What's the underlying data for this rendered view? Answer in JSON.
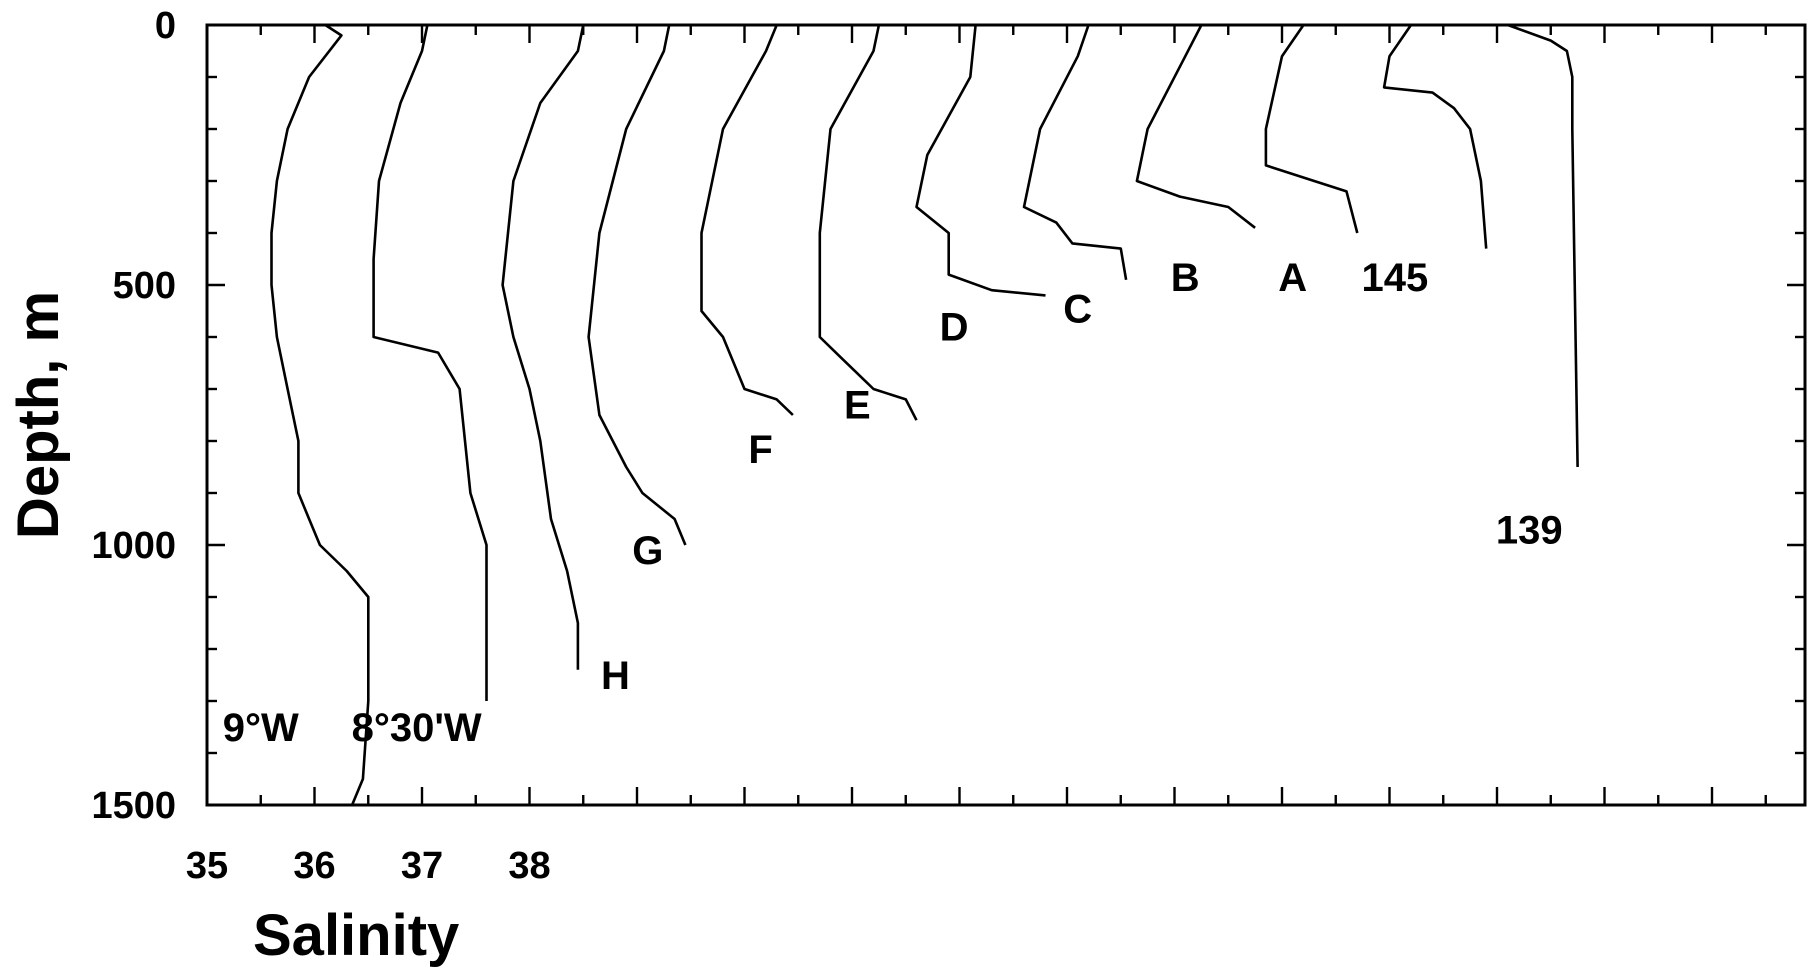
{
  "chart_data": {
    "type": "line",
    "title": "",
    "xlabel": "Salinity",
    "ylabel": "Depth, m",
    "x_ticks": [
      35,
      36,
      37,
      38
    ],
    "x_tick_labels": [
      "35",
      "36",
      "37",
      "38"
    ],
    "y_ticks": [
      0,
      500,
      1000,
      1500
    ],
    "y_tick_labels": [
      "0",
      "500",
      "1000",
      "1500"
    ],
    "ylim": [
      0,
      1500
    ],
    "y_inverted": true,
    "grid": false,
    "legend": "none",
    "note": "",
    "series": [
      {
        "name": "9°W",
        "label_at": [
          35.5,
          1350
        ],
        "points": [
          [
            36.1,
            0
          ],
          [
            36.25,
            20
          ],
          [
            35.95,
            100
          ],
          [
            35.75,
            200
          ],
          [
            35.65,
            300
          ],
          [
            35.6,
            400
          ],
          [
            35.6,
            500
          ],
          [
            35.65,
            600
          ],
          [
            35.75,
            700
          ],
          [
            35.85,
            800
          ],
          [
            35.85,
            900
          ],
          [
            35.95,
            950
          ],
          [
            36.05,
            1000
          ],
          [
            36.3,
            1050
          ],
          [
            36.5,
            1100
          ],
          [
            36.5,
            1300
          ],
          [
            36.45,
            1450
          ],
          [
            36.35,
            1500
          ]
        ]
      },
      {
        "name": "8°30'W",
        "label_at": [
          36.95,
          1350
        ],
        "points": [
          [
            37.05,
            0
          ],
          [
            37.0,
            50
          ],
          [
            36.8,
            150
          ],
          [
            36.6,
            300
          ],
          [
            36.55,
            450
          ],
          [
            36.55,
            600
          ],
          [
            37.15,
            630
          ],
          [
            37.35,
            700
          ],
          [
            37.4,
            800
          ],
          [
            37.45,
            900
          ],
          [
            37.6,
            1000
          ],
          [
            37.6,
            1300
          ]
        ]
      },
      {
        "name": "H",
        "label_at": [
          38.8,
          1250
        ],
        "points": [
          [
            38.5,
            0
          ],
          [
            38.45,
            50
          ],
          [
            38.1,
            150
          ],
          [
            37.85,
            300
          ],
          [
            37.75,
            500
          ],
          [
            37.85,
            600
          ],
          [
            38.0,
            700
          ],
          [
            38.1,
            800
          ],
          [
            38.2,
            950
          ],
          [
            38.35,
            1050
          ],
          [
            38.45,
            1150
          ],
          [
            38.45,
            1240
          ]
        ]
      },
      {
        "name": "G",
        "label_at": [
          39.1,
          1010
        ],
        "points": [
          [
            39.3,
            0
          ],
          [
            39.25,
            50
          ],
          [
            38.9,
            200
          ],
          [
            38.65,
            400
          ],
          [
            38.55,
            600
          ],
          [
            38.65,
            750
          ],
          [
            38.9,
            850
          ],
          [
            39.05,
            900
          ],
          [
            39.35,
            950
          ],
          [
            39.45,
            1000
          ]
        ]
      },
      {
        "name": "F",
        "label_at": [
          40.15,
          815
        ],
        "points": [
          [
            40.3,
            0
          ],
          [
            40.2,
            50
          ],
          [
            39.8,
            200
          ],
          [
            39.6,
            400
          ],
          [
            39.6,
            550
          ],
          [
            39.8,
            600
          ],
          [
            40.0,
            700
          ],
          [
            40.3,
            720
          ],
          [
            40.45,
            750
          ]
        ]
      },
      {
        "name": "E",
        "label_at": [
          41.05,
          730
        ],
        "points": [
          [
            41.25,
            0
          ],
          [
            41.2,
            50
          ],
          [
            40.8,
            200
          ],
          [
            40.7,
            400
          ],
          [
            40.7,
            600
          ],
          [
            40.9,
            640
          ],
          [
            41.2,
            700
          ],
          [
            41.5,
            720
          ],
          [
            41.6,
            760
          ]
        ]
      },
      {
        "name": "D",
        "label_at": [
          41.95,
          580
        ],
        "points": [
          [
            42.15,
            0
          ],
          [
            42.1,
            100
          ],
          [
            41.7,
            250
          ],
          [
            41.6,
            350
          ],
          [
            41.9,
            400
          ],
          [
            41.9,
            480
          ],
          [
            42.3,
            510
          ],
          [
            42.8,
            520
          ]
        ]
      },
      {
        "name": "C",
        "label_at": [
          43.1,
          545
        ],
        "points": [
          [
            43.2,
            0
          ],
          [
            43.1,
            60
          ],
          [
            42.75,
            200
          ],
          [
            42.6,
            350
          ],
          [
            42.9,
            380
          ],
          [
            43.05,
            420
          ],
          [
            43.5,
            430
          ],
          [
            43.55,
            490
          ]
        ]
      },
      {
        "name": "B",
        "label_at": [
          44.1,
          485
        ],
        "points": [
          [
            44.25,
            0
          ],
          [
            44.1,
            60
          ],
          [
            43.75,
            200
          ],
          [
            43.65,
            300
          ],
          [
            44.05,
            330
          ],
          [
            44.5,
            350
          ],
          [
            44.75,
            390
          ]
        ]
      },
      {
        "name": "A",
        "label_at": [
          45.1,
          485
        ],
        "points": [
          [
            45.2,
            0
          ],
          [
            45.0,
            60
          ],
          [
            44.85,
            200
          ],
          [
            44.85,
            270
          ],
          [
            45.3,
            300
          ],
          [
            45.6,
            320
          ],
          [
            45.7,
            400
          ]
        ]
      },
      {
        "name": "145",
        "label_at": [
          46.05,
          485
        ],
        "points": [
          [
            46.2,
            0
          ],
          [
            46.0,
            60
          ],
          [
            45.95,
            120
          ],
          [
            46.4,
            130
          ],
          [
            46.6,
            160
          ],
          [
            46.75,
            200
          ],
          [
            46.85,
            300
          ],
          [
            46.9,
            430
          ]
        ]
      },
      {
        "name": "139",
        "label_at": [
          47.3,
          970
        ],
        "points": [
          [
            47.1,
            0
          ],
          [
            47.5,
            30
          ],
          [
            47.65,
            50
          ],
          [
            47.7,
            100
          ],
          [
            47.7,
            200
          ],
          [
            47.75,
            850
          ]
        ]
      }
    ]
  }
}
